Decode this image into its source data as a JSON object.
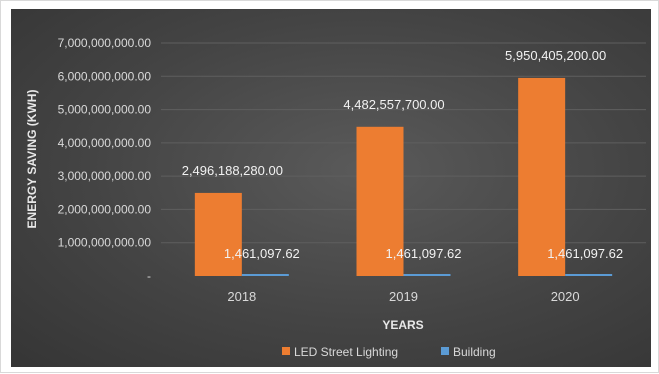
{
  "chart_data": {
    "type": "bar",
    "title": "",
    "xlabel": "YEARS",
    "ylabel": "ENERGY SAVING (KWH)",
    "categories": [
      "2018",
      "2019",
      "2020"
    ],
    "ylim": [
      0,
      7000000000
    ],
    "yticks": [
      0,
      1000000000,
      2000000000,
      3000000000,
      4000000000,
      5000000000,
      6000000000,
      7000000000
    ],
    "ytick_labels": [
      "-",
      "1,000,000,000.00",
      "2,000,000,000.00",
      "3,000,000,000.00",
      "4,000,000,000.00",
      "5,000,000,000.00",
      "6,000,000,000.00",
      "7,000,000,000.00"
    ],
    "grid": true,
    "legend_position": "bottom",
    "series": [
      {
        "name": "LED Street Lighting",
        "color": "#ed7d31",
        "values": [
          2496188280.0,
          4482557700.0,
          5950405200.0
        ],
        "labels": [
          "2,496,188,280.00",
          "4,482,557,700.00",
          "5,950,405,200.00"
        ]
      },
      {
        "name": "Building",
        "color": "#5b9bd5",
        "values": [
          1461097.62,
          1461097.62,
          1461097.62
        ],
        "labels": [
          "1,461,097.62",
          "1,461,097.62",
          "1,461,097.62"
        ]
      }
    ]
  }
}
